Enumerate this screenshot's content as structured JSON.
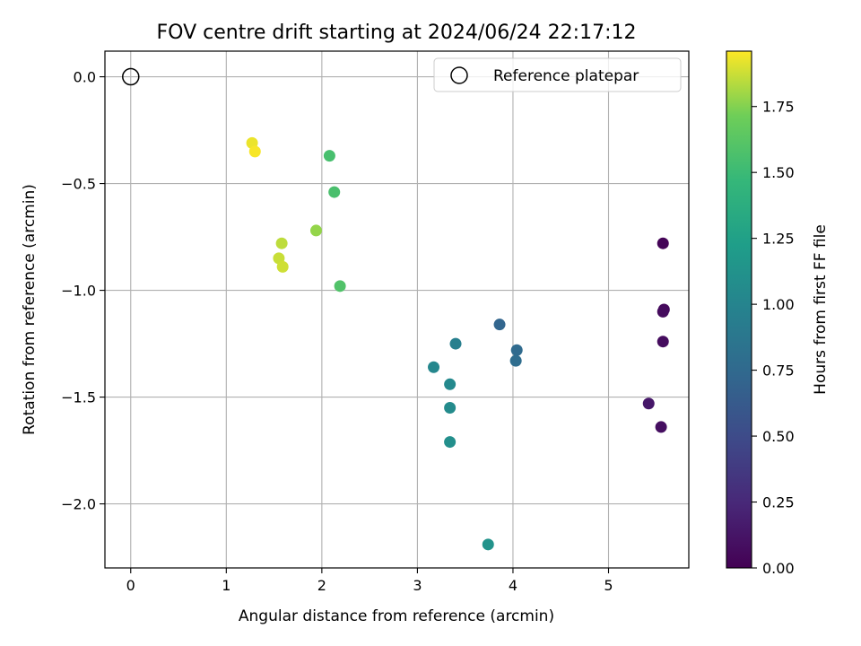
{
  "chart_data": {
    "type": "scatter",
    "title": "FOV centre drift starting at 2024/06/24 22:17:12",
    "xlabel": "Angular distance from reference (arcmin)",
    "ylabel": "Rotation from reference (arcmin)",
    "xlim": [
      -0.27,
      5.84
    ],
    "ylim": [
      -2.3,
      0.12
    ],
    "x_ticks": [
      0,
      1,
      2,
      3,
      4,
      5
    ],
    "x_tick_labels": [
      "0",
      "1",
      "2",
      "3",
      "4",
      "5"
    ],
    "y_ticks": [
      0.0,
      -0.5,
      -1.0,
      -1.5,
      -2.0
    ],
    "y_tick_labels": [
      "0.0",
      "−0.5",
      "−1.0",
      "−1.5",
      "−2.0"
    ],
    "grid": true,
    "legend": {
      "position": "top-right",
      "entries": [
        "Reference platepar"
      ]
    },
    "reference_point": {
      "x": 0,
      "y": 0
    },
    "colorbar": {
      "label": "Hours from first FF file",
      "colormap": "viridis",
      "range": [
        0,
        1.96
      ],
      "ticks": [
        0,
        0.25,
        0.5,
        0.75,
        1.0,
        1.25,
        1.5,
        1.75
      ],
      "tick_labels": [
        "0.00",
        "0.25",
        "0.50",
        "0.75",
        "1.00",
        "1.25",
        "1.50",
        "1.75"
      ]
    },
    "points": [
      {
        "x": 5.57,
        "y": -0.78,
        "c": 0.02
      },
      {
        "x": 5.58,
        "y": -1.09,
        "c": 0.05
      },
      {
        "x": 5.57,
        "y": -1.1,
        "c": 0.06
      },
      {
        "x": 5.57,
        "y": -1.24,
        "c": 0.07
      },
      {
        "x": 5.55,
        "y": -1.64,
        "c": 0.08
      },
      {
        "x": 5.42,
        "y": -1.53,
        "c": 0.14
      },
      {
        "x": 3.86,
        "y": -1.16,
        "c": 0.72
      },
      {
        "x": 4.04,
        "y": -1.28,
        "c": 0.76
      },
      {
        "x": 4.03,
        "y": -1.33,
        "c": 0.78
      },
      {
        "x": 3.4,
        "y": -1.25,
        "c": 0.95
      },
      {
        "x": 3.17,
        "y": -1.36,
        "c": 1.02
      },
      {
        "x": 3.34,
        "y": -1.44,
        "c": 1.04
      },
      {
        "x": 3.34,
        "y": -1.55,
        "c": 1.06
      },
      {
        "x": 3.34,
        "y": -1.71,
        "c": 1.09
      },
      {
        "x": 3.74,
        "y": -2.19,
        "c": 1.13
      },
      {
        "x": 2.08,
        "y": -0.37,
        "c": 1.55
      },
      {
        "x": 2.13,
        "y": -0.54,
        "c": 1.56
      },
      {
        "x": 2.19,
        "y": -0.98,
        "c": 1.59
      },
      {
        "x": 1.94,
        "y": -0.72,
        "c": 1.78
      },
      {
        "x": 1.58,
        "y": -0.78,
        "c": 1.85
      },
      {
        "x": 1.55,
        "y": -0.85,
        "c": 1.87
      },
      {
        "x": 1.59,
        "y": -0.89,
        "c": 1.88
      },
      {
        "x": 1.27,
        "y": -0.31,
        "c": 1.93
      },
      {
        "x": 1.3,
        "y": -0.35,
        "c": 1.95
      }
    ]
  }
}
